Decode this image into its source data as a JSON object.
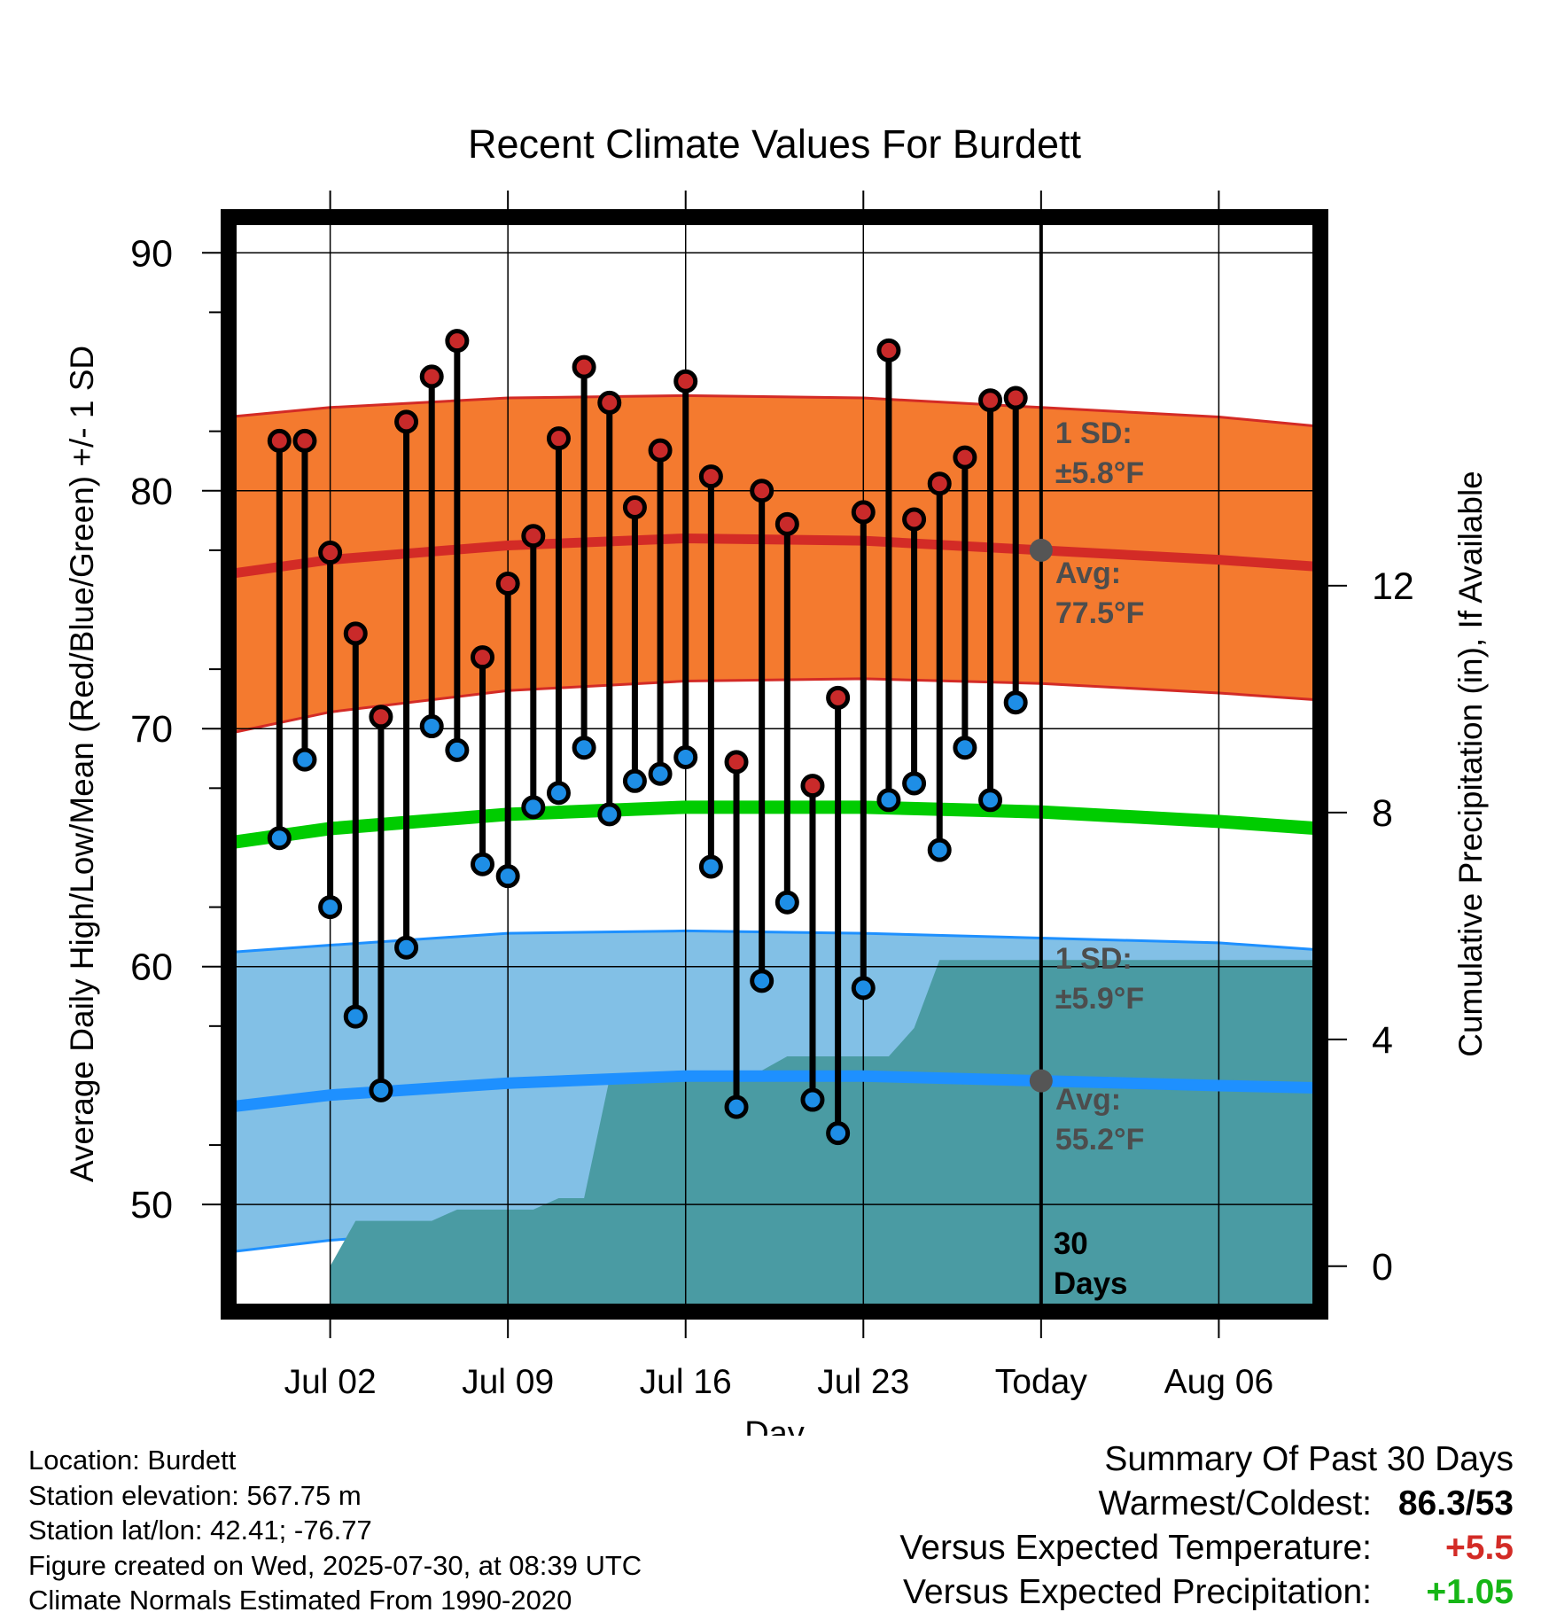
{
  "chart_data": {
    "type": "line",
    "title": "Recent Climate Values For Burdett",
    "xlabel": "Day",
    "ylabel": "Average Daily High/Low/Mean (Red/Blue/Green) +/- 1 SD",
    "y2label": "Cumulative Precipitation (in), If Available",
    "xlim": [
      "2025-06-28",
      "2025-08-10"
    ],
    "ylim": [
      45.5,
      91.5
    ],
    "y2lim": [
      -0.8,
      18.5
    ],
    "y_ticks": [
      "50",
      "60",
      "70",
      "80",
      "90"
    ],
    "y2_ticks": [
      "0",
      "4",
      "8",
      "12"
    ],
    "x_ticks": [
      {
        "date": "2025-07-02",
        "label": "Jul 02"
      },
      {
        "date": "2025-07-09",
        "label": "Jul 09"
      },
      {
        "date": "2025-07-16",
        "label": "Jul 16"
      },
      {
        "date": "2025-07-23",
        "label": "Jul 23"
      },
      {
        "date": "2025-07-30",
        "label": "Today"
      },
      {
        "date": "2025-08-06",
        "label": "Aug 06"
      }
    ],
    "today": "2025-07-30",
    "today_window_label": "30 Days",
    "grid": true,
    "colors": {
      "high_band": "#f47a2f",
      "high_line": "#d32b26",
      "low_band": "#82c0e6",
      "low_line": "#1e90ff",
      "mean_line": "#00cc00",
      "precip": "#4a9ba3",
      "high_dot": "#c92a2a",
      "low_dot": "#1e8ee6",
      "annotation": "#4d4d4d"
    },
    "daily_observations": {
      "dates": [
        "2025-06-30",
        "2025-07-01",
        "2025-07-02",
        "2025-07-03",
        "2025-07-04",
        "2025-07-05",
        "2025-07-06",
        "2025-07-07",
        "2025-07-08",
        "2025-07-09",
        "2025-07-10",
        "2025-07-11",
        "2025-07-12",
        "2025-07-13",
        "2025-07-14",
        "2025-07-15",
        "2025-07-16",
        "2025-07-17",
        "2025-07-18",
        "2025-07-19",
        "2025-07-20",
        "2025-07-21",
        "2025-07-22",
        "2025-07-23",
        "2025-07-24",
        "2025-07-25",
        "2025-07-26",
        "2025-07-27",
        "2025-07-28",
        "2025-07-29"
      ],
      "high": [
        82.1,
        82.1,
        77.4,
        74.0,
        70.5,
        82.9,
        84.8,
        86.3,
        73.0,
        76.1,
        78.1,
        82.2,
        85.2,
        83.7,
        79.3,
        81.7,
        84.6,
        80.6,
        68.6,
        80.0,
        78.6,
        67.6,
        71.3,
        79.1,
        85.9,
        78.8,
        80.3,
        81.4,
        83.8,
        83.9
      ],
      "low": [
        65.4,
        68.7,
        62.5,
        57.9,
        54.8,
        60.8,
        70.1,
        69.1,
        64.3,
        63.8,
        66.7,
        67.3,
        69.2,
        66.4,
        67.8,
        68.1,
        68.8,
        64.2,
        54.1,
        59.4,
        62.7,
        54.4,
        53.0,
        59.1,
        67.0,
        67.7,
        64.9,
        69.2,
        67.0,
        71.1
      ]
    },
    "normals": {
      "dates": [
        "2025-06-28",
        "2025-07-02",
        "2025-07-09",
        "2025-07-16",
        "2025-07-23",
        "2025-07-30",
        "2025-08-06",
        "2025-08-10"
      ],
      "high_avg": [
        76.5,
        77.1,
        77.7,
        78.0,
        77.9,
        77.5,
        77.1,
        76.8
      ],
      "high_upper": [
        83.1,
        83.5,
        83.9,
        84.0,
        83.9,
        83.5,
        83.1,
        82.7
      ],
      "high_lower": [
        69.8,
        70.7,
        71.6,
        72.0,
        72.1,
        71.9,
        71.5,
        71.2
      ],
      "mean_avg": [
        65.2,
        65.8,
        66.4,
        66.7,
        66.7,
        66.5,
        66.1,
        65.8
      ],
      "low_avg": [
        54.1,
        54.6,
        55.1,
        55.4,
        55.4,
        55.2,
        55.0,
        54.9
      ],
      "low_upper": [
        60.6,
        60.9,
        61.4,
        61.5,
        61.4,
        61.2,
        61.0,
        60.7
      ],
      "low_lower": [
        48.0,
        48.5,
        49.0,
        49.3,
        49.3,
        49.2,
        48.9,
        48.5
      ]
    },
    "cumulative_precip": {
      "dates": [
        "2025-07-02",
        "2025-07-03",
        "2025-07-06",
        "2025-07-07",
        "2025-07-10",
        "2025-07-11",
        "2025-07-12",
        "2025-07-13",
        "2025-07-15",
        "2025-07-16",
        "2025-07-19",
        "2025-07-20",
        "2025-07-24",
        "2025-07-25",
        "2025-07-26",
        "2025-08-10"
      ],
      "values": [
        0.0,
        0.8,
        0.8,
        1.0,
        1.0,
        1.2,
        1.2,
        3.3,
        3.3,
        3.45,
        3.45,
        3.7,
        3.7,
        4.2,
        5.4,
        5.4
      ]
    },
    "annotations": {
      "high_sd": "1 SD:",
      "high_sd_value": "±5.8°F",
      "high_avg": "Avg:",
      "high_avg_value": "77.5°F",
      "low_sd": "1 SD:",
      "low_sd_value": "±5.9°F",
      "low_avg": "Avg:",
      "low_avg_value": "55.2°F"
    }
  },
  "station_info": [
    "Location: Burdett",
    "Station elevation: 567.75 m",
    "Station lat/lon: 42.41; -76.77",
    "Figure created on Wed, 2025-07-30, at 08:39 UTC",
    "Climate Normals Estimated From 1990-2020"
  ],
  "summary": {
    "title": "Summary Of Past 30 Days",
    "warmest_coldest_label": "Warmest/Coldest:",
    "warmest": "86.3",
    "coldest": "53",
    "temp_label": "Versus Expected Temperature:",
    "temp_value": "+5.5",
    "temp_color": "#d32b26",
    "precip_label": "Versus Expected Precipitation:",
    "precip_value": "+1.05",
    "precip_color": "#16b616"
  }
}
